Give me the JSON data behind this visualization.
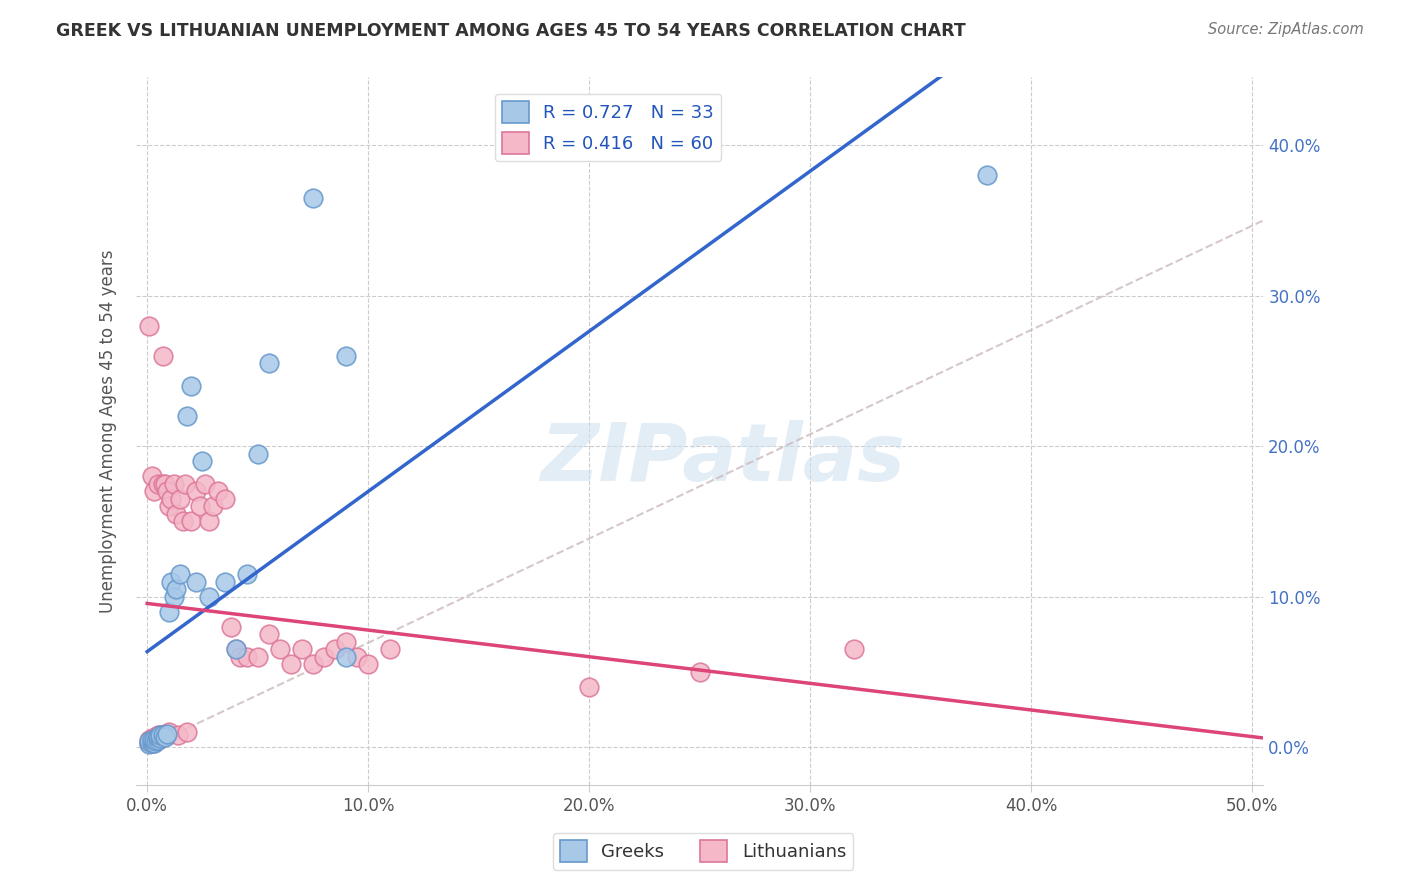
{
  "title": "GREEK VS LITHUANIAN UNEMPLOYMENT AMONG AGES 45 TO 54 YEARS CORRELATION CHART",
  "source": "Source: ZipAtlas.com",
  "ylabel": "Unemployment Among Ages 45 to 54 years",
  "xlim": [
    -0.005,
    0.505
  ],
  "ylim": [
    -0.025,
    0.445
  ],
  "xticks": [
    0.0,
    0.1,
    0.2,
    0.3,
    0.4,
    0.5
  ],
  "yticks": [
    0.0,
    0.1,
    0.2,
    0.3,
    0.4
  ],
  "legend_r_greek": "R = 0.727",
  "legend_n_greek": "N = 33",
  "legend_r_lith": "R = 0.416",
  "legend_n_lith": "N = 60",
  "greek_color": "#a8c8e8",
  "greek_edge_color": "#6699cc",
  "lith_color": "#f4b8c8",
  "lith_edge_color": "#dd7799",
  "blue_line_color": "#3366cc",
  "pink_line_color": "#dd4477",
  "ref_line_color": "#ccbbbb",
  "watermark": "ZIPatlas",
  "background_color": "#ffffff",
  "greek_x": [
    0.001,
    0.001,
    0.002,
    0.002,
    0.003,
    0.003,
    0.004,
    0.005,
    0.005,
    0.006,
    0.006,
    0.007,
    0.008,
    0.009,
    0.01,
    0.011,
    0.012,
    0.013,
    0.015,
    0.018,
    0.02,
    0.022,
    0.025,
    0.028,
    0.035,
    0.04,
    0.045,
    0.05,
    0.055,
    0.075,
    0.09,
    0.38,
    0.09
  ],
  "greek_y": [
    0.002,
    0.004,
    0.003,
    0.005,
    0.003,
    0.005,
    0.004,
    0.005,
    0.007,
    0.006,
    0.008,
    0.008,
    0.007,
    0.009,
    0.09,
    0.11,
    0.1,
    0.105,
    0.115,
    0.22,
    0.24,
    0.11,
    0.19,
    0.1,
    0.11,
    0.065,
    0.115,
    0.195,
    0.255,
    0.365,
    0.26,
    0.38,
    0.06
  ],
  "lith_x": [
    0.001,
    0.001,
    0.001,
    0.002,
    0.002,
    0.002,
    0.003,
    0.003,
    0.003,
    0.004,
    0.004,
    0.005,
    0.005,
    0.005,
    0.006,
    0.006,
    0.007,
    0.007,
    0.007,
    0.008,
    0.008,
    0.009,
    0.009,
    0.01,
    0.01,
    0.011,
    0.012,
    0.013,
    0.014,
    0.015,
    0.016,
    0.017,
    0.018,
    0.02,
    0.022,
    0.024,
    0.026,
    0.028,
    0.03,
    0.032,
    0.035,
    0.038,
    0.04,
    0.042,
    0.045,
    0.05,
    0.055,
    0.06,
    0.065,
    0.07,
    0.075,
    0.08,
    0.085,
    0.09,
    0.095,
    0.1,
    0.11,
    0.2,
    0.25,
    0.32
  ],
  "lith_y": [
    0.003,
    0.005,
    0.28,
    0.004,
    0.006,
    0.18,
    0.003,
    0.005,
    0.17,
    0.004,
    0.007,
    0.005,
    0.008,
    0.175,
    0.006,
    0.008,
    0.007,
    0.175,
    0.26,
    0.009,
    0.175,
    0.008,
    0.17,
    0.01,
    0.16,
    0.165,
    0.175,
    0.155,
    0.008,
    0.165,
    0.15,
    0.175,
    0.01,
    0.15,
    0.17,
    0.16,
    0.175,
    0.15,
    0.16,
    0.17,
    0.165,
    0.08,
    0.065,
    0.06,
    0.06,
    0.06,
    0.075,
    0.065,
    0.055,
    0.065,
    0.055,
    0.06,
    0.065,
    0.07,
    0.06,
    0.055,
    0.065,
    0.04,
    0.05,
    0.065
  ]
}
